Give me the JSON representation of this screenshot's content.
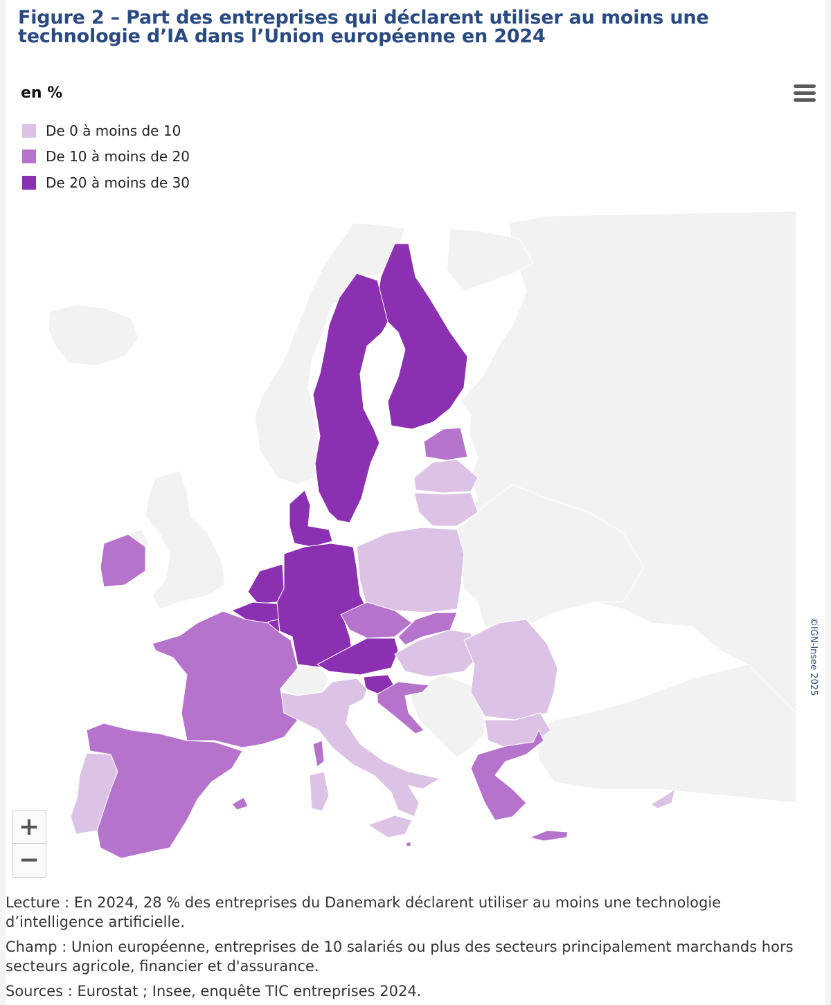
{
  "title": "Figure 2 – Part des entreprises qui déclarent utiliser au moins une technologie d’IA dans l’Union européenne en 2024",
  "legend": {
    "title": "en %",
    "items": [
      {
        "label": "De 0 à moins de 10",
        "color": "#dcc3e5"
      },
      {
        "label": "De 10 à moins de 20",
        "color": "#b673cb"
      },
      {
        "label": "De 20 à moins de 30",
        "color": "#8b30b1"
      }
    ]
  },
  "colors": {
    "non_eu": "#f2f2f2",
    "border": "#ffffff"
  },
  "map_data": {
    "type": "choropleth",
    "regions": [
      {
        "name": "Finlande",
        "class": "De 20 à moins de 30"
      },
      {
        "name": "Suède",
        "class": "De 20 à moins de 30"
      },
      {
        "name": "Danemark",
        "class": "De 20 à moins de 30",
        "value": 28
      },
      {
        "name": "Pays-Bas",
        "class": "De 20 à moins de 30"
      },
      {
        "name": "Belgique",
        "class": "De 20 à moins de 30"
      },
      {
        "name": "Luxembourg",
        "class": "De 20 à moins de 30"
      },
      {
        "name": "Allemagne",
        "class": "De 20 à moins de 30"
      },
      {
        "name": "Autriche",
        "class": "De 20 à moins de 30"
      },
      {
        "name": "Slovénie",
        "class": "De 20 à moins de 30"
      },
      {
        "name": "Estonie",
        "class": "De 10 à moins de 20"
      },
      {
        "name": "Irlande",
        "class": "De 10 à moins de 20"
      },
      {
        "name": "France",
        "class": "De 10 à moins de 20"
      },
      {
        "name": "Espagne",
        "class": "De 10 à moins de 20"
      },
      {
        "name": "Tchéquie",
        "class": "De 10 à moins de 20"
      },
      {
        "name": "Slovaquie",
        "class": "De 10 à moins de 20"
      },
      {
        "name": "Croatie",
        "class": "De 10 à moins de 20"
      },
      {
        "name": "Grèce",
        "class": "De 10 à moins de 20"
      },
      {
        "name": "Malte",
        "class": "De 10 à moins de 20"
      },
      {
        "name": "Lettonie",
        "class": "De 0 à moins de 10"
      },
      {
        "name": "Lituanie",
        "class": "De 0 à moins de 10"
      },
      {
        "name": "Pologne",
        "class": "De 0 à moins de 10"
      },
      {
        "name": "Hongrie",
        "class": "De 0 à moins de 10"
      },
      {
        "name": "Roumanie",
        "class": "De 0 à moins de 10"
      },
      {
        "name": "Bulgarie",
        "class": "De 0 à moins de 10"
      },
      {
        "name": "Italie",
        "class": "De 0 à moins de 10"
      },
      {
        "name": "Portugal",
        "class": "De 0 à moins de 10"
      },
      {
        "name": "Chypre",
        "class": "De 0 à moins de 10"
      }
    ]
  },
  "controls": {
    "zoom_in": "+",
    "zoom_out": "−"
  },
  "credit": "©IGN-Insee 2025",
  "notes": {
    "lecture": "Lecture : En 2024, 28 % des entreprises du Danemark déclarent utiliser au moins une technologie d’intelligence artificielle.",
    "champ": "Champ : Union européenne, entreprises de 10 salariés ou plus des secteurs principalement marchands hors secteurs agricole, financier et d'assurance.",
    "sources": "Sources : Eurostat ; Insee, enquête TIC entreprises 2024."
  }
}
